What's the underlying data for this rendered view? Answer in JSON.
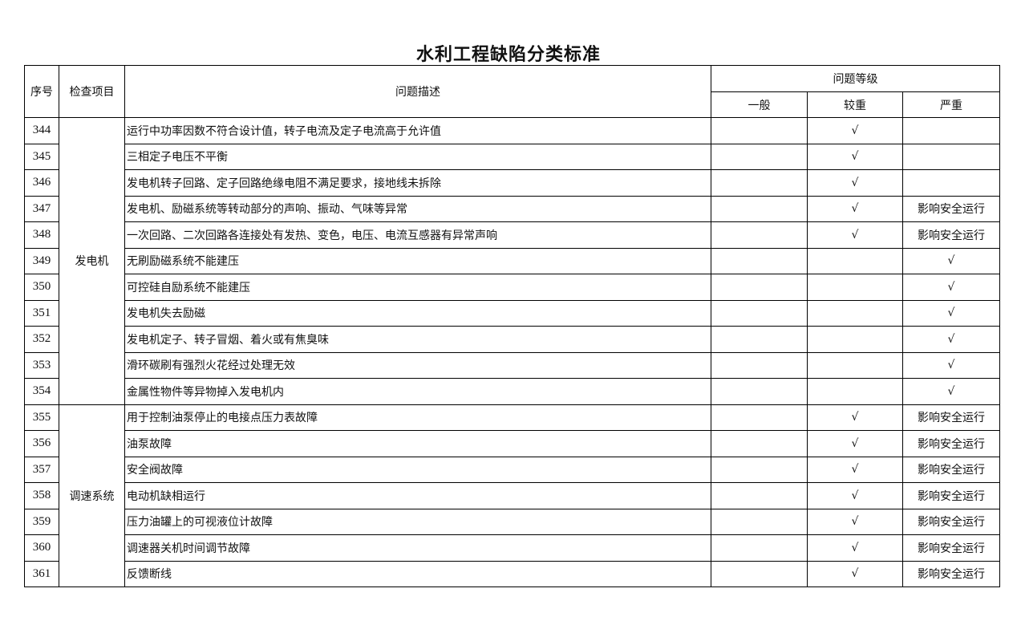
{
  "title": "水利工程缺陷分类标准",
  "headers": {
    "index": "序号",
    "item": "检查项目",
    "description": "问题描述",
    "level": "问题等级",
    "general": "一般",
    "major": "较重",
    "severe": "严重"
  },
  "check_mark": "√",
  "groups": [
    {
      "name": "发电机",
      "rows": [
        {
          "no": "344",
          "desc": "运行中功率因数不符合设计值，转子电流及定子电流高于允许值",
          "general": "",
          "major": "√",
          "severe": ""
        },
        {
          "no": "345",
          "desc": "三相定子电压不平衡",
          "general": "",
          "major": "√",
          "severe": ""
        },
        {
          "no": "346",
          "desc": "发电机转子回路、定子回路绝缘电阻不满足要求，接地线未拆除",
          "general": "",
          "major": "√",
          "severe": ""
        },
        {
          "no": "347",
          "desc": "发电机、励磁系统等转动部分的声响、振动、气味等异常",
          "general": "",
          "major": "√",
          "severe": "影响安全运行"
        },
        {
          "no": "348",
          "desc": "一次回路、二次回路各连接处有发热、变色，电压、电流互感器有异常声响",
          "general": "",
          "major": "√",
          "severe": "影响安全运行"
        },
        {
          "no": "349",
          "desc": "无刷励磁系统不能建压",
          "general": "",
          "major": "",
          "severe": "√"
        },
        {
          "no": "350",
          "desc": "可控硅自励系统不能建压",
          "general": "",
          "major": "",
          "severe": "√"
        },
        {
          "no": "351",
          "desc": "发电机失去励磁",
          "general": "",
          "major": "",
          "severe": "√"
        },
        {
          "no": "352",
          "desc": "发电机定子、转子冒烟、着火或有焦臭味",
          "general": "",
          "major": "",
          "severe": "√"
        },
        {
          "no": "353",
          "desc": "滑环碳刷有强烈火花经过处理无效",
          "general": "",
          "major": "",
          "severe": "√"
        },
        {
          "no": "354",
          "desc": "金属性物件等异物掉入发电机内",
          "general": "",
          "major": "",
          "severe": "√"
        }
      ]
    },
    {
      "name": "调速系统",
      "rows": [
        {
          "no": "355",
          "desc": "用于控制油泵停止的电接点压力表故障",
          "general": "",
          "major": "√",
          "severe": "影响安全运行"
        },
        {
          "no": "356",
          "desc": "油泵故障",
          "general": "",
          "major": "√",
          "severe": "影响安全运行"
        },
        {
          "no": "357",
          "desc": "安全阀故障",
          "general": "",
          "major": "√",
          "severe": "影响安全运行"
        },
        {
          "no": "358",
          "desc": "电动机缺相运行",
          "general": "",
          "major": "√",
          "severe": "影响安全运行"
        },
        {
          "no": "359",
          "desc": "压力油罐上的可视液位计故障",
          "general": "",
          "major": "√",
          "severe": "影响安全运行"
        },
        {
          "no": "360",
          "desc": "调速器关机时间调节故障",
          "general": "",
          "major": "√",
          "severe": "影响安全运行"
        },
        {
          "no": "361",
          "desc": "反馈断线",
          "general": "",
          "major": "√",
          "severe": "影响安全运行"
        }
      ]
    }
  ]
}
